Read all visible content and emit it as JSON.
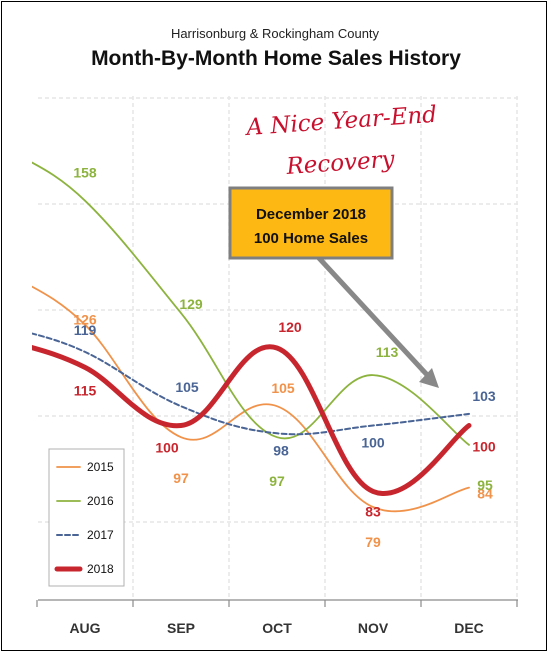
{
  "chart_data": {
    "type": "line",
    "subtitle": "Harrisonburg & Rockingham County",
    "title": "Month-By-Month Home Sales History",
    "categories": [
      "AUG",
      "SEP",
      "OCT",
      "NOV",
      "DEC"
    ],
    "ylim": [
      55,
      185
    ],
    "grid": true,
    "legend_position": "bottom-left",
    "series": [
      {
        "name": "2015",
        "color": "#f0924a",
        "values": [
          126,
          97,
          105,
          79,
          84
        ]
      },
      {
        "name": "2016",
        "color": "#8db33f",
        "values": [
          158,
          129,
          97,
          113,
          95
        ]
      },
      {
        "name": "2017",
        "color": "#4a6595",
        "values": [
          119,
          105,
          98,
          100,
          103
        ]
      },
      {
        "name": "2018",
        "color": "#c8262e",
        "values": [
          115,
          100,
          120,
          83,
          100
        ]
      }
    ],
    "annotation": {
      "note_line1": "A Nice Year-End",
      "note_line2": "Recovery",
      "callout_line1": "December 2018",
      "callout_line2": "100 Home Sales",
      "callout_fill": "#fdb813",
      "arrow_color": "#888888"
    }
  }
}
